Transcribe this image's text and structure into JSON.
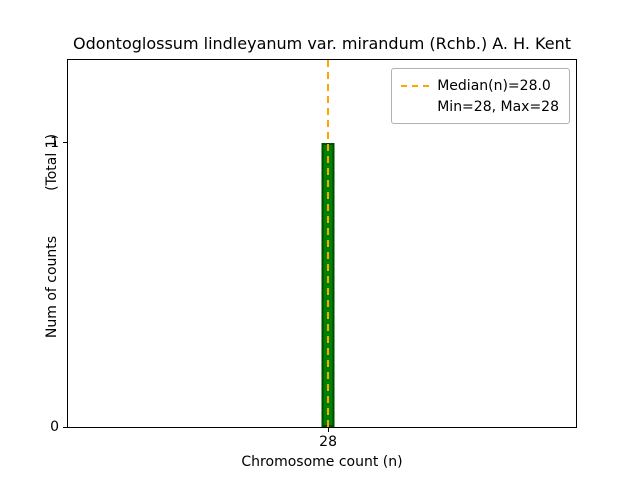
{
  "chart_data": {
    "type": "bar",
    "title": "Odontoglossum lindleyanum var. mirandum (Rchb.) A. H. Kent",
    "xlabel": "Chromosome count (n)",
    "ylabel": "Num of counts",
    "ylabel_annotation": "(Total 1)",
    "categories": [
      28
    ],
    "values": [
      1
    ],
    "ylim": [
      0,
      1.29
    ],
    "yticks": [
      0,
      1
    ],
    "xticks": [
      "28"
    ],
    "grid": false,
    "bar_color": "#008000",
    "bar_edge_color": "#004d00",
    "median_line": {
      "x": 28,
      "value_label": "28.0",
      "color": "#ffa500",
      "style": "dashed"
    },
    "legend": {
      "position": "upper right",
      "entries": [
        {
          "label": "Median(n)=28.0",
          "marker": "dashed-line",
          "color": "#ffa500"
        },
        {
          "label": "Min=28, Max=28",
          "marker": "none"
        }
      ]
    }
  }
}
